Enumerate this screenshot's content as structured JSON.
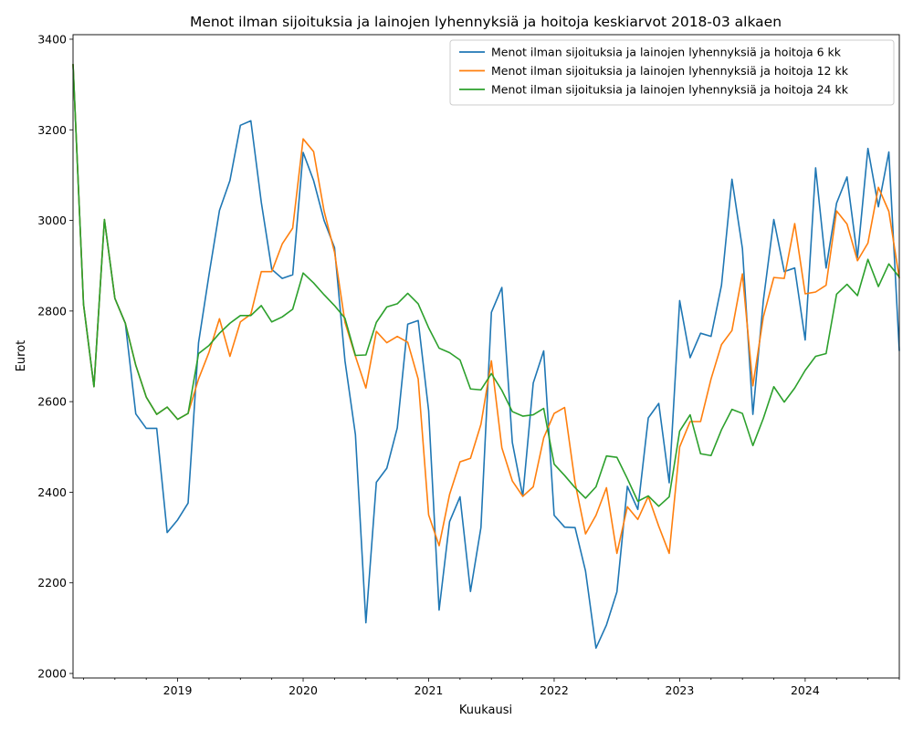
{
  "chart_data": {
    "type": "line",
    "title": "Menot ilman sijoituksia ja lainojen lyhennyksiä ja hoitoja keskiarvot 2018-03 alkaen",
    "xlabel": "Kuukausi",
    "ylabel": "Eurot",
    "x_start": "2018-03",
    "x_end": "2024-10",
    "x_tick_labels": [
      "2019",
      "2020",
      "2021",
      "2022",
      "2023",
      "2024"
    ],
    "ylim": [
      1990,
      3410
    ],
    "y_ticks": [
      2000,
      2200,
      2400,
      2600,
      2800,
      3000,
      3200,
      3400
    ],
    "grid": false,
    "legend_position": "top-right",
    "series": [
      {
        "name": "Menot ilman sijoituksia ja lainojen lyhennyksiä ja hoitoja 6 kk",
        "color": "#1f77b4",
        "values": [
          3345,
          2815,
          2633,
          3002,
          2828,
          2773,
          2573,
          2541,
          2541,
          2311,
          2339,
          2376,
          2730,
          2880,
          3022,
          3088,
          3210,
          3220,
          3040,
          2892,
          2872,
          2880,
          3150,
          3088,
          3000,
          2940,
          2690,
          2527,
          2112,
          2422,
          2453,
          2542,
          2771,
          2779,
          2580,
          2140,
          2335,
          2390,
          2181,
          2322,
          2797,
          2852,
          2510,
          2391,
          2641,
          2712,
          2349,
          2323,
          2322,
          2226,
          2056,
          2107,
          2180,
          2413,
          2362,
          2564,
          2596,
          2421,
          2823,
          2697,
          2751,
          2744,
          2857,
          3091,
          2938,
          2572,
          2823,
          3002,
          2887,
          2895,
          2736,
          3116,
          2895,
          3038,
          3096,
          2918,
          3159,
          3030,
          3151,
          2712
        ]
      },
      {
        "name": "Menot ilman sijoituksia ja lainojen lyhennyksiä ja hoitoja 12 kk",
        "color": "#ff7f0e",
        "values": [
          3345,
          2815,
          2633,
          3002,
          2828,
          2773,
          2680,
          2610,
          2572,
          2588,
          2561,
          2574,
          2650,
          2709,
          2783,
          2700,
          2776,
          2793,
          2887,
          2887,
          2948,
          2983,
          3180,
          3152,
          3021,
          2930,
          2775,
          2700,
          2630,
          2755,
          2730,
          2744,
          2731,
          2650,
          2350,
          2282,
          2395,
          2467,
          2475,
          2550,
          2690,
          2498,
          2425,
          2391,
          2412,
          2520,
          2574,
          2587,
          2421,
          2308,
          2349,
          2410,
          2265,
          2368,
          2340,
          2391,
          2325,
          2265,
          2500,
          2556,
          2556,
          2650,
          2726,
          2757,
          2882,
          2635,
          2787,
          2874,
          2872,
          2993,
          2838,
          2842,
          2857,
          3021,
          2992,
          2911,
          2950,
          3073,
          3020,
          2872
        ]
      },
      {
        "name": "Menot ilman sijoituksia ja lainojen lyhennyksiä ja hoitoja 24 kk",
        "color": "#2ca02c",
        "values": [
          3345,
          2815,
          2633,
          3002,
          2828,
          2773,
          2680,
          2610,
          2572,
          2588,
          2561,
          2574,
          2706,
          2724,
          2751,
          2773,
          2790,
          2790,
          2812,
          2776,
          2787,
          2804,
          2884,
          2862,
          2836,
          2812,
          2784,
          2702,
          2703,
          2775,
          2809,
          2816,
          2839,
          2816,
          2763,
          2718,
          2708,
          2692,
          2628,
          2626,
          2662,
          2625,
          2578,
          2568,
          2571,
          2585,
          2462,
          2437,
          2410,
          2387,
          2412,
          2480,
          2477,
          2430,
          2380,
          2392,
          2369,
          2390,
          2535,
          2571,
          2485,
          2481,
          2538,
          2583,
          2574,
          2503,
          2563,
          2633,
          2599,
          2630,
          2669,
          2700,
          2706,
          2837,
          2859,
          2834,
          2914,
          2854,
          2904,
          2875
        ]
      }
    ]
  }
}
